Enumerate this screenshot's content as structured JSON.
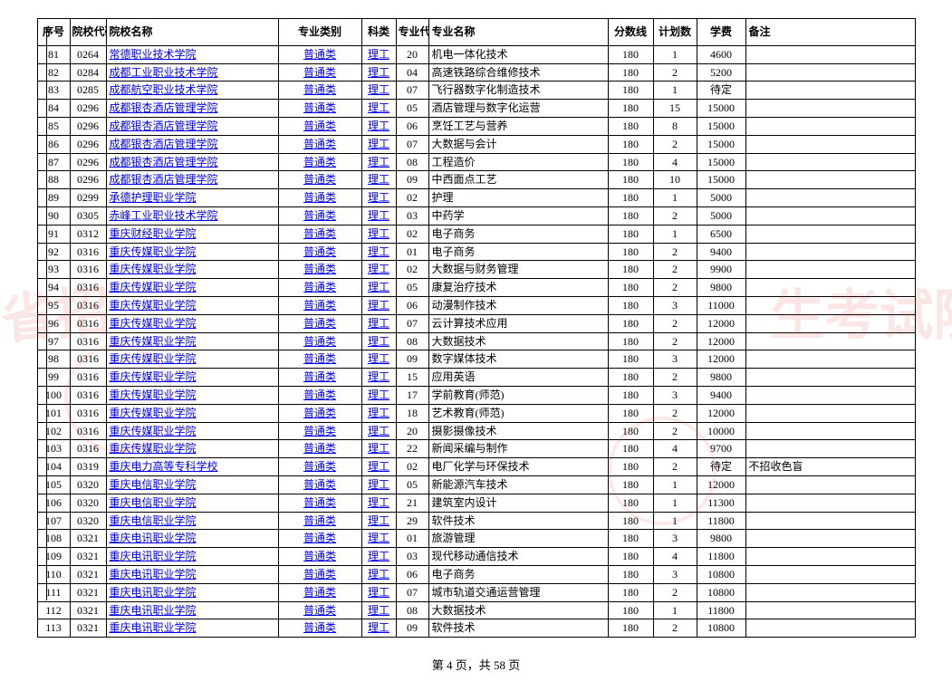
{
  "table": {
    "headers": {
      "seq": "序号",
      "code": "院校代码",
      "school": "院校名称",
      "category": "专业类别",
      "subject": "科类",
      "majorcode": "专业代码",
      "major": "专业名称",
      "score": "分数线",
      "plan": "计划数",
      "fee": "学费",
      "note": "备注"
    },
    "rows": [
      {
        "seq": "81",
        "code": "0264",
        "school": "常德职业技术学院",
        "category": "普通类",
        "subject": "理工",
        "majorcode": "20",
        "major": "机电一体化技术",
        "score": "180",
        "plan": "1",
        "fee": "4600",
        "note": ""
      },
      {
        "seq": "82",
        "code": "0284",
        "school": "成都工业职业技术学院",
        "category": "普通类",
        "subject": "理工",
        "majorcode": "04",
        "major": "高速铁路综合维修技术",
        "score": "180",
        "plan": "2",
        "fee": "5200",
        "note": ""
      },
      {
        "seq": "83",
        "code": "0285",
        "school": "成都航空职业技术学院",
        "category": "普通类",
        "subject": "理工",
        "majorcode": "07",
        "major": "飞行器数字化制造技术",
        "score": "180",
        "plan": "1",
        "fee": "待定",
        "note": ""
      },
      {
        "seq": "84",
        "code": "0296",
        "school": "成都银杏酒店管理学院",
        "category": "普通类",
        "subject": "理工",
        "majorcode": "05",
        "major": "酒店管理与数字化运营",
        "score": "180",
        "plan": "15",
        "fee": "15000",
        "note": ""
      },
      {
        "seq": "85",
        "code": "0296",
        "school": "成都银杏酒店管理学院",
        "category": "普通类",
        "subject": "理工",
        "majorcode": "06",
        "major": "烹饪工艺与营养",
        "score": "180",
        "plan": "8",
        "fee": "15000",
        "note": ""
      },
      {
        "seq": "86",
        "code": "0296",
        "school": "成都银杏酒店管理学院",
        "category": "普通类",
        "subject": "理工",
        "majorcode": "07",
        "major": "大数据与会计",
        "score": "180",
        "plan": "2",
        "fee": "15000",
        "note": ""
      },
      {
        "seq": "87",
        "code": "0296",
        "school": "成都银杏酒店管理学院",
        "category": "普通类",
        "subject": "理工",
        "majorcode": "08",
        "major": "工程造价",
        "score": "180",
        "plan": "4",
        "fee": "15000",
        "note": ""
      },
      {
        "seq": "88",
        "code": "0296",
        "school": "成都银杏酒店管理学院",
        "category": "普通类",
        "subject": "理工",
        "majorcode": "09",
        "major": "中西面点工艺",
        "score": "180",
        "plan": "10",
        "fee": "15000",
        "note": ""
      },
      {
        "seq": "89",
        "code": "0299",
        "school": "承德护理职业学院",
        "category": "普通类",
        "subject": "理工",
        "majorcode": "02",
        "major": "护理",
        "score": "180",
        "plan": "1",
        "fee": "5000",
        "note": ""
      },
      {
        "seq": "90",
        "code": "0305",
        "school": "赤峰工业职业技术学院",
        "category": "普通类",
        "subject": "理工",
        "majorcode": "03",
        "major": "中药学",
        "score": "180",
        "plan": "2",
        "fee": "5000",
        "note": ""
      },
      {
        "seq": "91",
        "code": "0312",
        "school": "重庆财经职业学院",
        "category": "普通类",
        "subject": "理工",
        "majorcode": "02",
        "major": "电子商务",
        "score": "180",
        "plan": "1",
        "fee": "6500",
        "note": ""
      },
      {
        "seq": "92",
        "code": "0316",
        "school": "重庆传媒职业学院",
        "category": "普通类",
        "subject": "理工",
        "majorcode": "01",
        "major": "电子商务",
        "score": "180",
        "plan": "2",
        "fee": "9400",
        "note": ""
      },
      {
        "seq": "93",
        "code": "0316",
        "school": "重庆传媒职业学院",
        "category": "普通类",
        "subject": "理工",
        "majorcode": "02",
        "major": "大数据与财务管理",
        "score": "180",
        "plan": "2",
        "fee": "9900",
        "note": ""
      },
      {
        "seq": "94",
        "code": "0316",
        "school": "重庆传媒职业学院",
        "category": "普通类",
        "subject": "理工",
        "majorcode": "05",
        "major": "康复治疗技术",
        "score": "180",
        "plan": "2",
        "fee": "9800",
        "note": ""
      },
      {
        "seq": "95",
        "code": "0316",
        "school": "重庆传媒职业学院",
        "category": "普通类",
        "subject": "理工",
        "majorcode": "06",
        "major": "动漫制作技术",
        "score": "180",
        "plan": "3",
        "fee": "11000",
        "note": ""
      },
      {
        "seq": "96",
        "code": "0316",
        "school": "重庆传媒职业学院",
        "category": "普通类",
        "subject": "理工",
        "majorcode": "07",
        "major": "云计算技术应用",
        "score": "180",
        "plan": "2",
        "fee": "12000",
        "note": ""
      },
      {
        "seq": "97",
        "code": "0316",
        "school": "重庆传媒职业学院",
        "category": "普通类",
        "subject": "理工",
        "majorcode": "08",
        "major": "大数据技术",
        "score": "180",
        "plan": "2",
        "fee": "12000",
        "note": ""
      },
      {
        "seq": "98",
        "code": "0316",
        "school": "重庆传媒职业学院",
        "category": "普通类",
        "subject": "理工",
        "majorcode": "09",
        "major": "数字媒体技术",
        "score": "180",
        "plan": "3",
        "fee": "12000",
        "note": ""
      },
      {
        "seq": "99",
        "code": "0316",
        "school": "重庆传媒职业学院",
        "category": "普通类",
        "subject": "理工",
        "majorcode": "15",
        "major": "应用英语",
        "score": "180",
        "plan": "2",
        "fee": "9800",
        "note": ""
      },
      {
        "seq": "100",
        "code": "0316",
        "school": "重庆传媒职业学院",
        "category": "普通类",
        "subject": "理工",
        "majorcode": "17",
        "major": "学前教育(师范)",
        "score": "180",
        "plan": "3",
        "fee": "9400",
        "note": ""
      },
      {
        "seq": "101",
        "code": "0316",
        "school": "重庆传媒职业学院",
        "category": "普通类",
        "subject": "理工",
        "majorcode": "18",
        "major": "艺术教育(师范)",
        "score": "180",
        "plan": "2",
        "fee": "12000",
        "note": ""
      },
      {
        "seq": "102",
        "code": "0316",
        "school": "重庆传媒职业学院",
        "category": "普通类",
        "subject": "理工",
        "majorcode": "20",
        "major": "摄影摄像技术",
        "score": "180",
        "plan": "2",
        "fee": "10000",
        "note": ""
      },
      {
        "seq": "103",
        "code": "0316",
        "school": "重庆传媒职业学院",
        "category": "普通类",
        "subject": "理工",
        "majorcode": "22",
        "major": "新闻采编与制作",
        "score": "180",
        "plan": "4",
        "fee": "9700",
        "note": ""
      },
      {
        "seq": "104",
        "code": "0319",
        "school": "重庆电力高等专科学校",
        "category": "普通类",
        "subject": "理工",
        "majorcode": "02",
        "major": "电厂化学与环保技术",
        "score": "180",
        "plan": "2",
        "fee": "待定",
        "note": "不招收色盲"
      },
      {
        "seq": "105",
        "code": "0320",
        "school": "重庆电信职业学院",
        "category": "普通类",
        "subject": "理工",
        "majorcode": "05",
        "major": "新能源汽车技术",
        "score": "180",
        "plan": "1",
        "fee": "12000",
        "note": ""
      },
      {
        "seq": "106",
        "code": "0320",
        "school": "重庆电信职业学院",
        "category": "普通类",
        "subject": "理工",
        "majorcode": "21",
        "major": "建筑室内设计",
        "score": "180",
        "plan": "1",
        "fee": "11300",
        "note": ""
      },
      {
        "seq": "107",
        "code": "0320",
        "school": "重庆电信职业学院",
        "category": "普通类",
        "subject": "理工",
        "majorcode": "29",
        "major": "软件技术",
        "score": "180",
        "plan": "1",
        "fee": "11800",
        "note": ""
      },
      {
        "seq": "108",
        "code": "0321",
        "school": "重庆电讯职业学院",
        "category": "普通类",
        "subject": "理工",
        "majorcode": "01",
        "major": "旅游管理",
        "score": "180",
        "plan": "3",
        "fee": "9800",
        "note": ""
      },
      {
        "seq": "109",
        "code": "0321",
        "school": "重庆电讯职业学院",
        "category": "普通类",
        "subject": "理工",
        "majorcode": "03",
        "major": "现代移动通信技术",
        "score": "180",
        "plan": "4",
        "fee": "11800",
        "note": ""
      },
      {
        "seq": "110",
        "code": "0321",
        "school": "重庆电讯职业学院",
        "category": "普通类",
        "subject": "理工",
        "majorcode": "06",
        "major": "电子商务",
        "score": "180",
        "plan": "3",
        "fee": "10800",
        "note": ""
      },
      {
        "seq": "111",
        "code": "0321",
        "school": "重庆电讯职业学院",
        "category": "普通类",
        "subject": "理工",
        "majorcode": "07",
        "major": "城市轨道交通运营管理",
        "score": "180",
        "plan": "2",
        "fee": "10800",
        "note": ""
      },
      {
        "seq": "112",
        "code": "0321",
        "school": "重庆电讯职业学院",
        "category": "普通类",
        "subject": "理工",
        "majorcode": "08",
        "major": "大数据技术",
        "score": "180",
        "plan": "1",
        "fee": "11800",
        "note": ""
      },
      {
        "seq": "113",
        "code": "0321",
        "school": "重庆电讯职业学院",
        "category": "普通类",
        "subject": "理工",
        "majorcode": "09",
        "major": "软件技术",
        "score": "180",
        "plan": "2",
        "fee": "10800",
        "note": ""
      }
    ]
  },
  "footer": {
    "text": "第 4 页，共 58 页"
  },
  "watermark": {
    "text1": "省招",
    "text2": "生考试院"
  },
  "styling": {
    "border_color": "#000000",
    "link_color": "#0000ee",
    "background": "#ffffff",
    "watermark_color": "rgba(220,40,40,0.12)",
    "font_family": "SimSun",
    "header_fontsize": 12,
    "cell_fontsize": 12
  }
}
